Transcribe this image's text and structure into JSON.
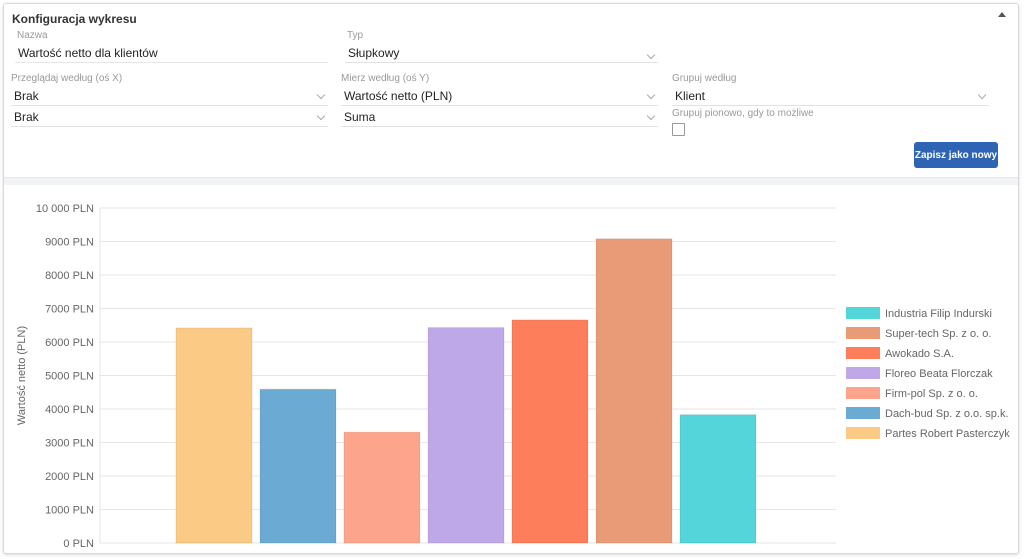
{
  "config": {
    "title": "Konfiguracja wykresu",
    "name": {
      "label": "Nazwa",
      "value": "Wartość netto dla klientów"
    },
    "type": {
      "label": "Typ",
      "value": "Słupkowy"
    },
    "xaxis": {
      "label": "Przeglądaj według (oś X)",
      "value1": "Brak",
      "value2": "Brak"
    },
    "yaxis": {
      "label": "Mierz według (oś Y)",
      "value1": "Wartość netto (PLN)",
      "value2": "Suma"
    },
    "group": {
      "label": "Grupuj według",
      "value": "Klient",
      "vertical_label": "Grupuj pionowo, gdy to możliwe",
      "vertical_checked": false
    },
    "save_label": "Zapisz jako nowy"
  },
  "chart_data": {
    "type": "bar",
    "ylabel": "Wartość netto (PLN)",
    "ylim": [
      0,
      10000
    ],
    "yticks": [
      "0 PLN",
      "1000 PLN",
      "2000 PLN",
      "3000 PLN",
      "4000 PLN",
      "5000 PLN",
      "6000 PLN",
      "7000 PLN",
      "8000 PLN",
      "9000 PLN",
      "10 000 PLN"
    ],
    "grid": true,
    "legend_position": "right",
    "series": [
      {
        "name": "Partes Robert Pasterczyk",
        "value": 6420,
        "color": "#fbcb85"
      },
      {
        "name": "Dach-bud Sp. z o.o. sp.k.",
        "value": 4590,
        "color": "#6aaad3"
      },
      {
        "name": "Firm-pol Sp. z o. o.",
        "value": 3310,
        "color": "#fda58c"
      },
      {
        "name": "Floreo Beata Florczak",
        "value": 6430,
        "color": "#bfa8e8"
      },
      {
        "name": "Awokado S.A.",
        "value": 6660,
        "color": "#fd7e5a"
      },
      {
        "name": "Super-tech Sp. z o. o.",
        "value": 9080,
        "color": "#e99b77"
      },
      {
        "name": "Industria Filip Indurski",
        "value": 3830,
        "color": "#54d5da"
      }
    ],
    "legend_order": [
      "Industria Filip Indurski",
      "Super-tech Sp. z o. o.",
      "Awokado S.A.",
      "Floreo Beata Florczak",
      "Firm-pol Sp. z o. o.",
      "Dach-bud Sp. z o.o. sp.k.",
      "Partes Robert Pasterczyk"
    ]
  }
}
